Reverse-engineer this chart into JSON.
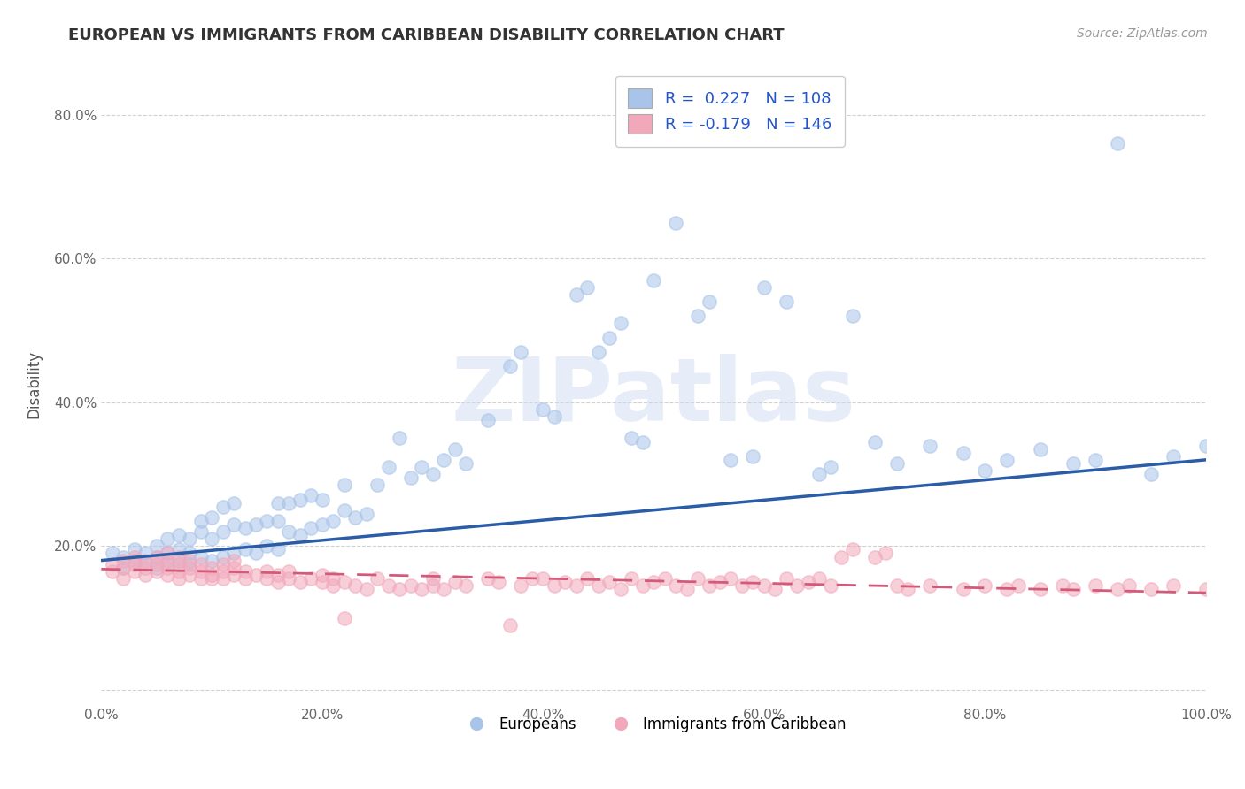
{
  "title": "EUROPEAN VS IMMIGRANTS FROM CARIBBEAN DISABILITY CORRELATION CHART",
  "source": "Source: ZipAtlas.com",
  "ylabel": "Disability",
  "xlabel": "",
  "xlim": [
    0.0,
    1.0
  ],
  "ylim": [
    -0.02,
    0.87
  ],
  "yticks": [
    0.0,
    0.2,
    0.4,
    0.6,
    0.8
  ],
  "ytick_labels": [
    "",
    "20.0%",
    "40.0%",
    "60.0%",
    "80.0%"
  ],
  "xtick_labels": [
    "0.0%",
    "",
    "20.0%",
    "",
    "40.0%",
    "",
    "60.0%",
    "",
    "80.0%",
    "",
    "100.0%"
  ],
  "xticks": [
    0.0,
    0.1,
    0.2,
    0.3,
    0.4,
    0.5,
    0.6,
    0.7,
    0.8,
    0.9,
    1.0
  ],
  "legend_labels": [
    "Europeans",
    "Immigrants from Caribbean"
  ],
  "blue_color": "#a8c4e8",
  "pink_color": "#f2a8bb",
  "blue_line_color": "#2a5ca8",
  "pink_line_color": "#d45a7a",
  "R_blue": 0.227,
  "N_blue": 108,
  "R_pink": -0.179,
  "N_pink": 146,
  "watermark": "ZIPatlas",
  "background_color": "#ffffff",
  "grid_color": "#cccccc",
  "title_color": "#333333",
  "blue_scatter": [
    [
      0.01,
      0.19
    ],
    [
      0.02,
      0.185
    ],
    [
      0.02,
      0.17
    ],
    [
      0.03,
      0.18
    ],
    [
      0.03,
      0.195
    ],
    [
      0.04,
      0.175
    ],
    [
      0.04,
      0.19
    ],
    [
      0.05,
      0.17
    ],
    [
      0.05,
      0.185
    ],
    [
      0.05,
      0.2
    ],
    [
      0.06,
      0.175
    ],
    [
      0.06,
      0.19
    ],
    [
      0.06,
      0.21
    ],
    [
      0.07,
      0.18
    ],
    [
      0.07,
      0.195
    ],
    [
      0.07,
      0.215
    ],
    [
      0.08,
      0.175
    ],
    [
      0.08,
      0.19
    ],
    [
      0.08,
      0.21
    ],
    [
      0.09,
      0.185
    ],
    [
      0.09,
      0.22
    ],
    [
      0.09,
      0.235
    ],
    [
      0.1,
      0.18
    ],
    [
      0.1,
      0.21
    ],
    [
      0.1,
      0.24
    ],
    [
      0.11,
      0.185
    ],
    [
      0.11,
      0.22
    ],
    [
      0.11,
      0.255
    ],
    [
      0.12,
      0.19
    ],
    [
      0.12,
      0.23
    ],
    [
      0.12,
      0.26
    ],
    [
      0.13,
      0.195
    ],
    [
      0.13,
      0.225
    ],
    [
      0.14,
      0.19
    ],
    [
      0.14,
      0.23
    ],
    [
      0.15,
      0.2
    ],
    [
      0.15,
      0.235
    ],
    [
      0.16,
      0.195
    ],
    [
      0.16,
      0.235
    ],
    [
      0.16,
      0.26
    ],
    [
      0.17,
      0.22
    ],
    [
      0.17,
      0.26
    ],
    [
      0.18,
      0.215
    ],
    [
      0.18,
      0.265
    ],
    [
      0.19,
      0.225
    ],
    [
      0.19,
      0.27
    ],
    [
      0.2,
      0.23
    ],
    [
      0.2,
      0.265
    ],
    [
      0.21,
      0.235
    ],
    [
      0.22,
      0.25
    ],
    [
      0.22,
      0.285
    ],
    [
      0.23,
      0.24
    ],
    [
      0.24,
      0.245
    ],
    [
      0.25,
      0.285
    ],
    [
      0.26,
      0.31
    ],
    [
      0.27,
      0.35
    ],
    [
      0.28,
      0.295
    ],
    [
      0.29,
      0.31
    ],
    [
      0.3,
      0.3
    ],
    [
      0.31,
      0.32
    ],
    [
      0.32,
      0.335
    ],
    [
      0.33,
      0.315
    ],
    [
      0.35,
      0.375
    ],
    [
      0.37,
      0.45
    ],
    [
      0.38,
      0.47
    ],
    [
      0.4,
      0.39
    ],
    [
      0.41,
      0.38
    ],
    [
      0.43,
      0.55
    ],
    [
      0.44,
      0.56
    ],
    [
      0.45,
      0.47
    ],
    [
      0.46,
      0.49
    ],
    [
      0.47,
      0.51
    ],
    [
      0.48,
      0.35
    ],
    [
      0.49,
      0.345
    ],
    [
      0.5,
      0.57
    ],
    [
      0.52,
      0.65
    ],
    [
      0.54,
      0.52
    ],
    [
      0.55,
      0.54
    ],
    [
      0.57,
      0.32
    ],
    [
      0.59,
      0.325
    ],
    [
      0.6,
      0.56
    ],
    [
      0.62,
      0.54
    ],
    [
      0.65,
      0.3
    ],
    [
      0.66,
      0.31
    ],
    [
      0.68,
      0.52
    ],
    [
      0.7,
      0.345
    ],
    [
      0.72,
      0.315
    ],
    [
      0.75,
      0.34
    ],
    [
      0.78,
      0.33
    ],
    [
      0.8,
      0.305
    ],
    [
      0.82,
      0.32
    ],
    [
      0.85,
      0.335
    ],
    [
      0.88,
      0.315
    ],
    [
      0.9,
      0.32
    ],
    [
      0.92,
      0.76
    ],
    [
      0.95,
      0.3
    ],
    [
      0.97,
      0.325
    ],
    [
      1.0,
      0.34
    ]
  ],
  "pink_scatter": [
    [
      0.01,
      0.175
    ],
    [
      0.01,
      0.165
    ],
    [
      0.02,
      0.17
    ],
    [
      0.02,
      0.155
    ],
    [
      0.02,
      0.18
    ],
    [
      0.03,
      0.165
    ],
    [
      0.03,
      0.175
    ],
    [
      0.03,
      0.185
    ],
    [
      0.04,
      0.16
    ],
    [
      0.04,
      0.17
    ],
    [
      0.04,
      0.18
    ],
    [
      0.05,
      0.165
    ],
    [
      0.05,
      0.175
    ],
    [
      0.05,
      0.185
    ],
    [
      0.06,
      0.16
    ],
    [
      0.06,
      0.17
    ],
    [
      0.06,
      0.18
    ],
    [
      0.06,
      0.19
    ],
    [
      0.07,
      0.155
    ],
    [
      0.07,
      0.165
    ],
    [
      0.07,
      0.175
    ],
    [
      0.07,
      0.185
    ],
    [
      0.08,
      0.16
    ],
    [
      0.08,
      0.17
    ],
    [
      0.08,
      0.18
    ],
    [
      0.09,
      0.155
    ],
    [
      0.09,
      0.165
    ],
    [
      0.09,
      0.175
    ],
    [
      0.1,
      0.16
    ],
    [
      0.1,
      0.17
    ],
    [
      0.1,
      0.155
    ],
    [
      0.11,
      0.155
    ],
    [
      0.11,
      0.165
    ],
    [
      0.11,
      0.175
    ],
    [
      0.12,
      0.16
    ],
    [
      0.12,
      0.17
    ],
    [
      0.12,
      0.18
    ],
    [
      0.13,
      0.155
    ],
    [
      0.13,
      0.165
    ],
    [
      0.14,
      0.16
    ],
    [
      0.15,
      0.155
    ],
    [
      0.15,
      0.165
    ],
    [
      0.16,
      0.15
    ],
    [
      0.16,
      0.16
    ],
    [
      0.17,
      0.155
    ],
    [
      0.17,
      0.165
    ],
    [
      0.18,
      0.15
    ],
    [
      0.19,
      0.155
    ],
    [
      0.2,
      0.15
    ],
    [
      0.2,
      0.16
    ],
    [
      0.21,
      0.145
    ],
    [
      0.21,
      0.155
    ],
    [
      0.22,
      0.15
    ],
    [
      0.22,
      0.1
    ],
    [
      0.23,
      0.145
    ],
    [
      0.24,
      0.14
    ],
    [
      0.25,
      0.155
    ],
    [
      0.26,
      0.145
    ],
    [
      0.27,
      0.14
    ],
    [
      0.28,
      0.145
    ],
    [
      0.29,
      0.14
    ],
    [
      0.3,
      0.155
    ],
    [
      0.3,
      0.145
    ],
    [
      0.31,
      0.14
    ],
    [
      0.32,
      0.15
    ],
    [
      0.33,
      0.145
    ],
    [
      0.35,
      0.155
    ],
    [
      0.36,
      0.15
    ],
    [
      0.37,
      0.09
    ],
    [
      0.38,
      0.145
    ],
    [
      0.39,
      0.155
    ],
    [
      0.4,
      0.155
    ],
    [
      0.41,
      0.145
    ],
    [
      0.42,
      0.15
    ],
    [
      0.43,
      0.145
    ],
    [
      0.44,
      0.155
    ],
    [
      0.45,
      0.145
    ],
    [
      0.46,
      0.15
    ],
    [
      0.47,
      0.14
    ],
    [
      0.48,
      0.155
    ],
    [
      0.49,
      0.145
    ],
    [
      0.5,
      0.15
    ],
    [
      0.51,
      0.155
    ],
    [
      0.52,
      0.145
    ],
    [
      0.53,
      0.14
    ],
    [
      0.54,
      0.155
    ],
    [
      0.55,
      0.145
    ],
    [
      0.56,
      0.15
    ],
    [
      0.57,
      0.155
    ],
    [
      0.58,
      0.145
    ],
    [
      0.59,
      0.15
    ],
    [
      0.6,
      0.145
    ],
    [
      0.61,
      0.14
    ],
    [
      0.62,
      0.155
    ],
    [
      0.63,
      0.145
    ],
    [
      0.64,
      0.15
    ],
    [
      0.65,
      0.155
    ],
    [
      0.66,
      0.145
    ],
    [
      0.67,
      0.185
    ],
    [
      0.68,
      0.195
    ],
    [
      0.7,
      0.185
    ],
    [
      0.71,
      0.19
    ],
    [
      0.72,
      0.145
    ],
    [
      0.73,
      0.14
    ],
    [
      0.75,
      0.145
    ],
    [
      0.78,
      0.14
    ],
    [
      0.8,
      0.145
    ],
    [
      0.82,
      0.14
    ],
    [
      0.83,
      0.145
    ],
    [
      0.85,
      0.14
    ],
    [
      0.87,
      0.145
    ],
    [
      0.88,
      0.14
    ],
    [
      0.9,
      0.145
    ],
    [
      0.92,
      0.14
    ],
    [
      0.93,
      0.145
    ],
    [
      0.95,
      0.14
    ],
    [
      0.97,
      0.145
    ],
    [
      1.0,
      0.14
    ]
  ]
}
